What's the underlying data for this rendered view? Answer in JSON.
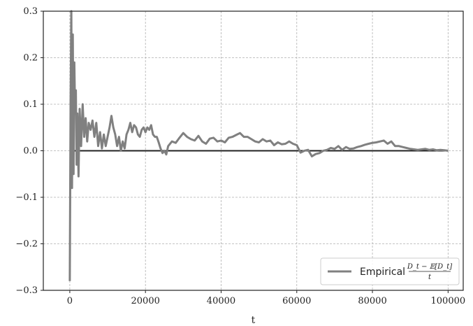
{
  "chart_data": {
    "type": "line",
    "title": "",
    "xlabel": "t",
    "ylabel": "",
    "xlim": [
      -7000,
      104000
    ],
    "ylim": [
      -0.3,
      0.3
    ],
    "x_ticks": [
      0,
      20000,
      40000,
      60000,
      80000,
      100000
    ],
    "x_tick_labels": [
      "0",
      "20000",
      "40000",
      "60000",
      "80000",
      "100000"
    ],
    "y_ticks": [
      -0.3,
      -0.2,
      -0.1,
      0.0,
      0.1,
      0.2,
      0.3
    ],
    "y_tick_labels": [
      "−0.3",
      "−0.2",
      "−0.1",
      "0.0",
      "0.1",
      "0.2",
      "0.3"
    ],
    "grid": true,
    "legend_position": "lower-right",
    "legend": {
      "label": "Empirical",
      "math_numerator": "D_t − 𝔼[D_t]",
      "math_denominator": "t"
    },
    "colors": {
      "series": "#808080",
      "reference": "#222222",
      "grid": "#b0b0b0",
      "frame": "#222222"
    },
    "series": [
      {
        "name": "Empirical",
        "x": [
          0,
          200,
          400,
          600,
          800,
          1000,
          1200,
          1400,
          1600,
          1800,
          2000,
          2300,
          2600,
          3000,
          3400,
          3800,
          4200,
          4600,
          5000,
          5500,
          6000,
          6500,
          7000,
          7500,
          8000,
          8500,
          9000,
          9500,
          10000,
          10500,
          11000,
          11500,
          12000,
          12500,
          13000,
          13500,
          14000,
          14500,
          15000,
          15500,
          16000,
          16500,
          17000,
          17500,
          18000,
          18500,
          19000,
          19500,
          20000,
          20500,
          21000,
          21500,
          22000,
          22500,
          23000,
          23500,
          24000,
          24500,
          25000,
          25500,
          26000,
          27000,
          28000,
          29000,
          30000,
          31000,
          32000,
          33000,
          34000,
          35000,
          36000,
          37000,
          38000,
          39000,
          40000,
          41000,
          42000,
          43000,
          44000,
          45000,
          46000,
          47000,
          48000,
          49000,
          50000,
          51000,
          52000,
          53000,
          54000,
          55000,
          56000,
          57000,
          58000,
          59000,
          60000,
          61000,
          62000,
          63000,
          64000,
          65000,
          66000,
          67000,
          68000,
          69000,
          70000,
          71000,
          72000,
          73000,
          74000,
          75000,
          76000,
          77000,
          78000,
          79000,
          80000,
          81000,
          82000,
          83000,
          84000,
          85000,
          86000,
          87000,
          88000,
          89000,
          90000,
          91000,
          92000,
          93000,
          94000,
          95000,
          96000,
          97000,
          98000,
          99000,
          100000
        ],
        "y": [
          -0.28,
          0.1,
          0.3,
          -0.08,
          0.25,
          -0.05,
          0.19,
          0.08,
          0.13,
          -0.03,
          0.08,
          -0.055,
          0.09,
          0.01,
          0.1,
          0.03,
          0.07,
          0.02,
          0.06,
          0.045,
          0.065,
          0.03,
          0.06,
          0.01,
          0.04,
          0.005,
          0.035,
          0.01,
          0.03,
          0.05,
          0.075,
          0.05,
          0.035,
          0.01,
          0.03,
          0.0,
          0.02,
          0.005,
          0.035,
          0.045,
          0.06,
          0.04,
          0.055,
          0.05,
          0.035,
          0.03,
          0.045,
          0.05,
          0.04,
          0.05,
          0.045,
          0.055,
          0.035,
          0.03,
          0.03,
          0.018,
          0.005,
          -0.005,
          0.0,
          -0.008,
          0.01,
          0.02,
          0.017,
          0.028,
          0.038,
          0.03,
          0.025,
          0.022,
          0.032,
          0.02,
          0.015,
          0.026,
          0.028,
          0.02,
          0.022,
          0.018,
          0.028,
          0.03,
          0.034,
          0.038,
          0.03,
          0.03,
          0.025,
          0.02,
          0.018,
          0.025,
          0.02,
          0.022,
          0.012,
          0.018,
          0.014,
          0.015,
          0.02,
          0.015,
          0.012,
          -0.004,
          0.0,
          0.002,
          -0.012,
          -0.007,
          -0.005,
          0.0,
          0.002,
          0.006,
          0.004,
          0.01,
          0.002,
          0.008,
          0.004,
          0.005,
          0.008,
          0.01,
          0.013,
          0.015,
          0.017,
          0.018,
          0.02,
          0.022,
          0.015,
          0.02,
          0.01,
          0.01,
          0.008,
          0.006,
          0.004,
          0.003,
          0.002,
          0.003,
          0.004,
          0.002,
          0.003,
          0.001,
          0.002,
          0.001,
          0.0
        ]
      },
      {
        "name": "",
        "x": [
          0,
          100000
        ],
        "y": [
          0.0,
          0.0
        ]
      }
    ]
  }
}
